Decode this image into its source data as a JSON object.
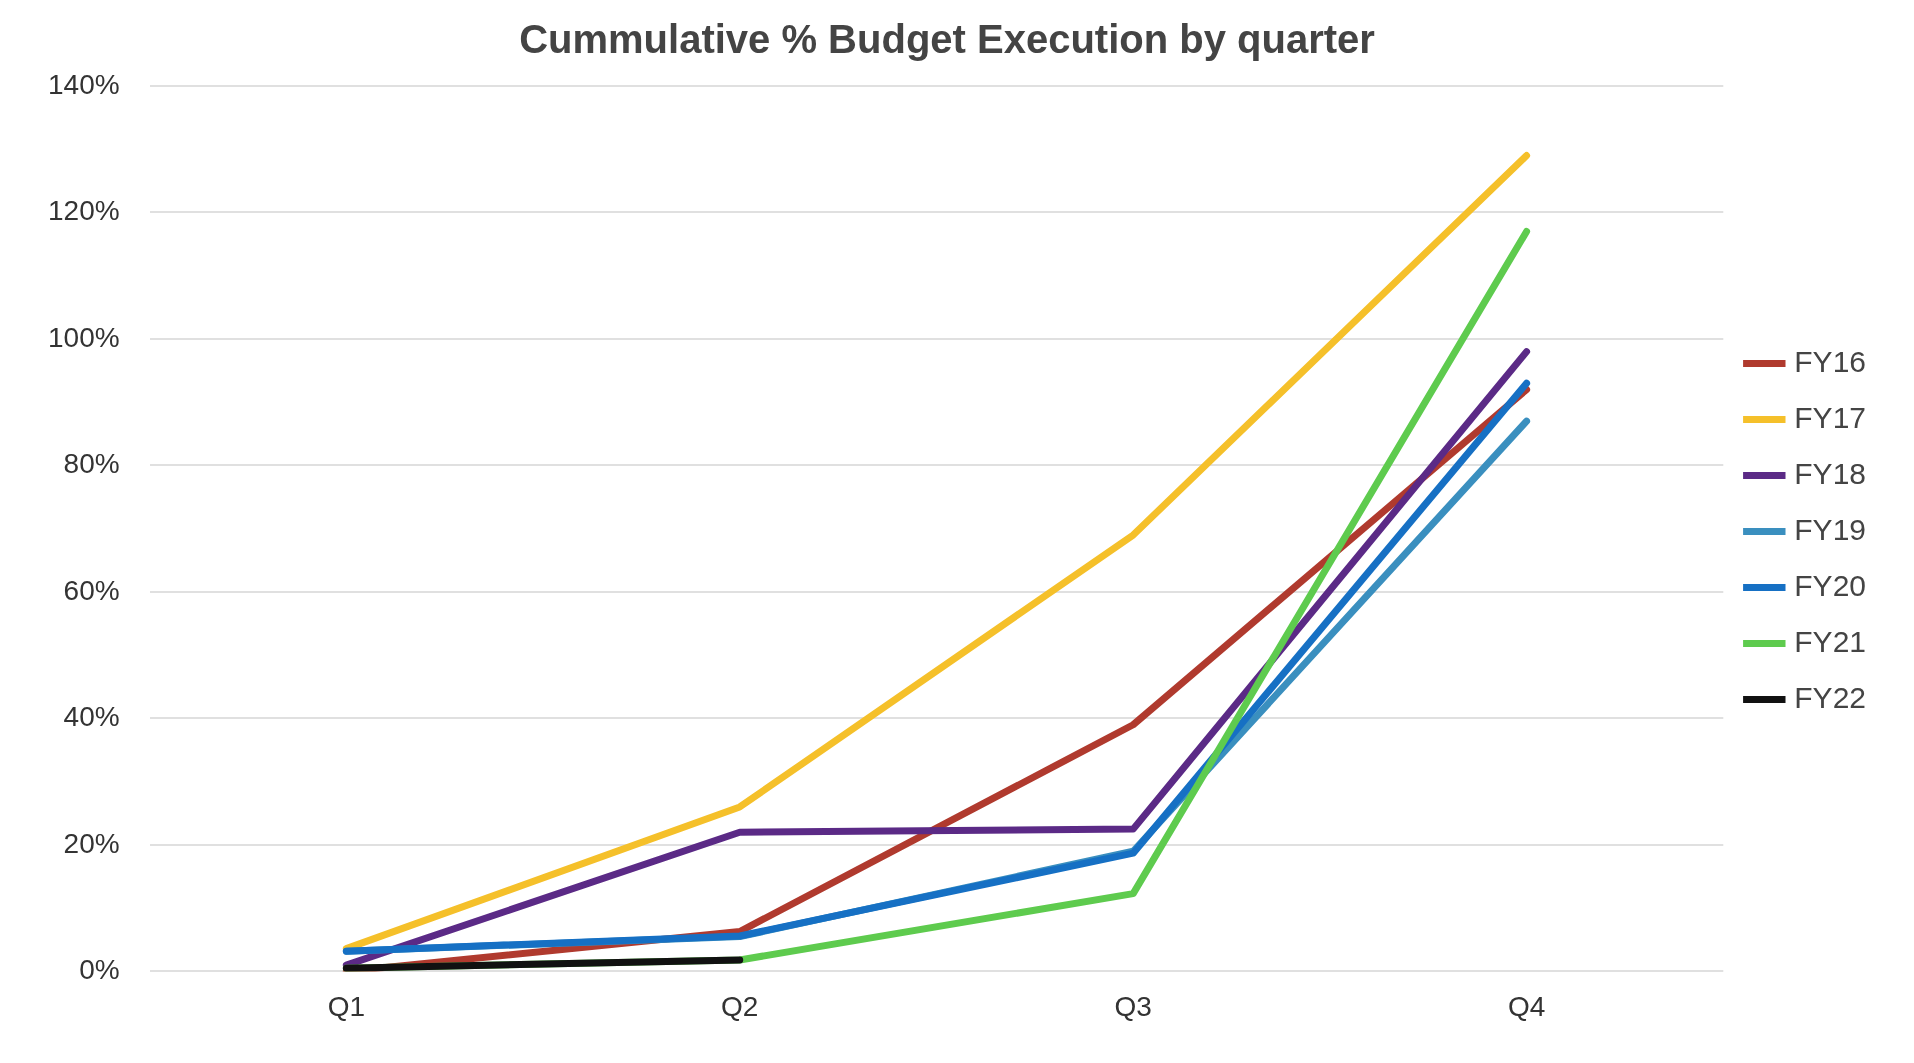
{
  "chart_data": {
    "type": "line",
    "title": "Cummulative % Budget Execution by quarter",
    "categories": [
      "Q1",
      "Q2",
      "Q3",
      "Q4"
    ],
    "series": [
      {
        "name": "FY16",
        "color": "#b03a2e",
        "values": [
          0,
          6.3,
          39,
          92
        ]
      },
      {
        "name": "FY17",
        "color": "#f5c02a",
        "values": [
          3.6,
          26,
          69,
          129
        ]
      },
      {
        "name": "FY18",
        "color": "#5b2a86",
        "values": [
          1,
          22,
          22.5,
          98
        ]
      },
      {
        "name": "FY19",
        "color": "#3a8fbf",
        "values": [
          3.2,
          5.5,
          19,
          87
        ]
      },
      {
        "name": "FY20",
        "color": "#1670c4",
        "values": [
          3.2,
          5.6,
          18.7,
          93
        ]
      },
      {
        "name": "FY21",
        "color": "#5ecb4e",
        "values": [
          0.5,
          1.8,
          12.3,
          117
        ]
      },
      {
        "name": "FY22",
        "color": "#111111",
        "values": [
          0.5,
          1.8,
          null,
          null
        ]
      }
    ],
    "ylim": [
      0,
      140
    ],
    "yticks": [
      {
        "value": 0,
        "label": "0%"
      },
      {
        "value": 20,
        "label": "20%"
      },
      {
        "value": 40,
        "label": "40%"
      },
      {
        "value": 60,
        "label": "60%"
      },
      {
        "value": 80,
        "label": "80%"
      },
      {
        "value": 100,
        "label": "100%"
      },
      {
        "value": 120,
        "label": "120%"
      },
      {
        "value": 140,
        "label": "140%"
      }
    ],
    "grid": "y",
    "legend": "right",
    "marker": "none",
    "line_style": "solid"
  }
}
